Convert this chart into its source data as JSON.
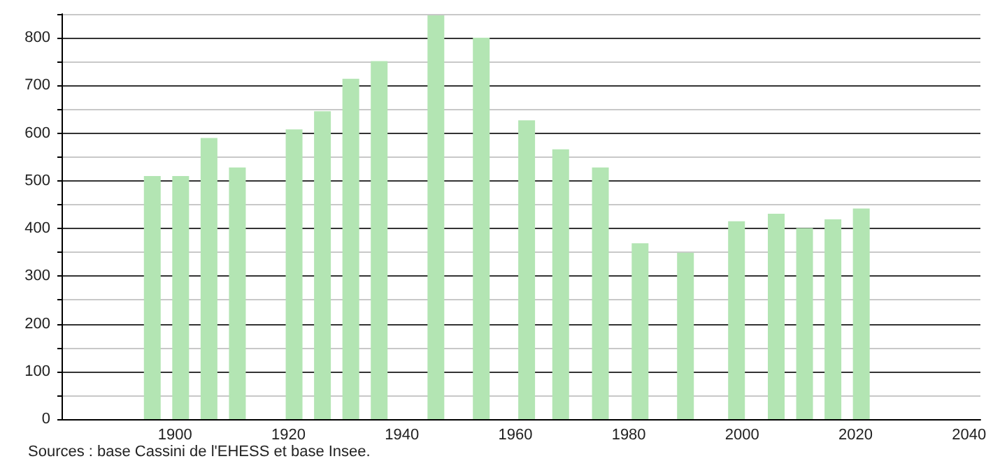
{
  "chart_data": {
    "type": "bar",
    "x": [
      1896,
      1901,
      1906,
      1911,
      1921,
      1926,
      1931,
      1936,
      1946,
      1954,
      1962,
      1968,
      1975,
      1982,
      1990,
      1999,
      2006,
      2011,
      2016,
      2021
    ],
    "values": [
      510,
      510,
      590,
      528,
      608,
      646,
      714,
      751,
      847,
      800,
      627,
      566,
      528,
      369,
      349,
      415,
      431,
      401,
      419,
      442
    ],
    "color": "#b3e5b3",
    "xlim": [
      1880,
      2042
    ],
    "xticks": [
      1900,
      1920,
      1940,
      1960,
      1980,
      2000,
      2020,
      2040
    ],
    "ylim": [
      0,
      850
    ],
    "yticks": [
      0,
      {
        "value": 50,
        "label": null
      },
      100,
      {
        "value": 150,
        "label": null
      },
      200,
      {
        "value": 250,
        "label": null
      },
      300,
      {
        "value": 350,
        "label": null
      },
      400,
      {
        "value": 450,
        "label": null
      },
      500,
      {
        "value": 550,
        "label": null
      },
      600,
      {
        "value": 650,
        "label": null
      },
      700,
      {
        "value": 750,
        "label": null
      },
      800,
      {
        "value": 850,
        "label": null
      }
    ],
    "grid": true,
    "annotations": [
      "Sources : base Cassini de l'EHESS et base Insee."
    ]
  }
}
